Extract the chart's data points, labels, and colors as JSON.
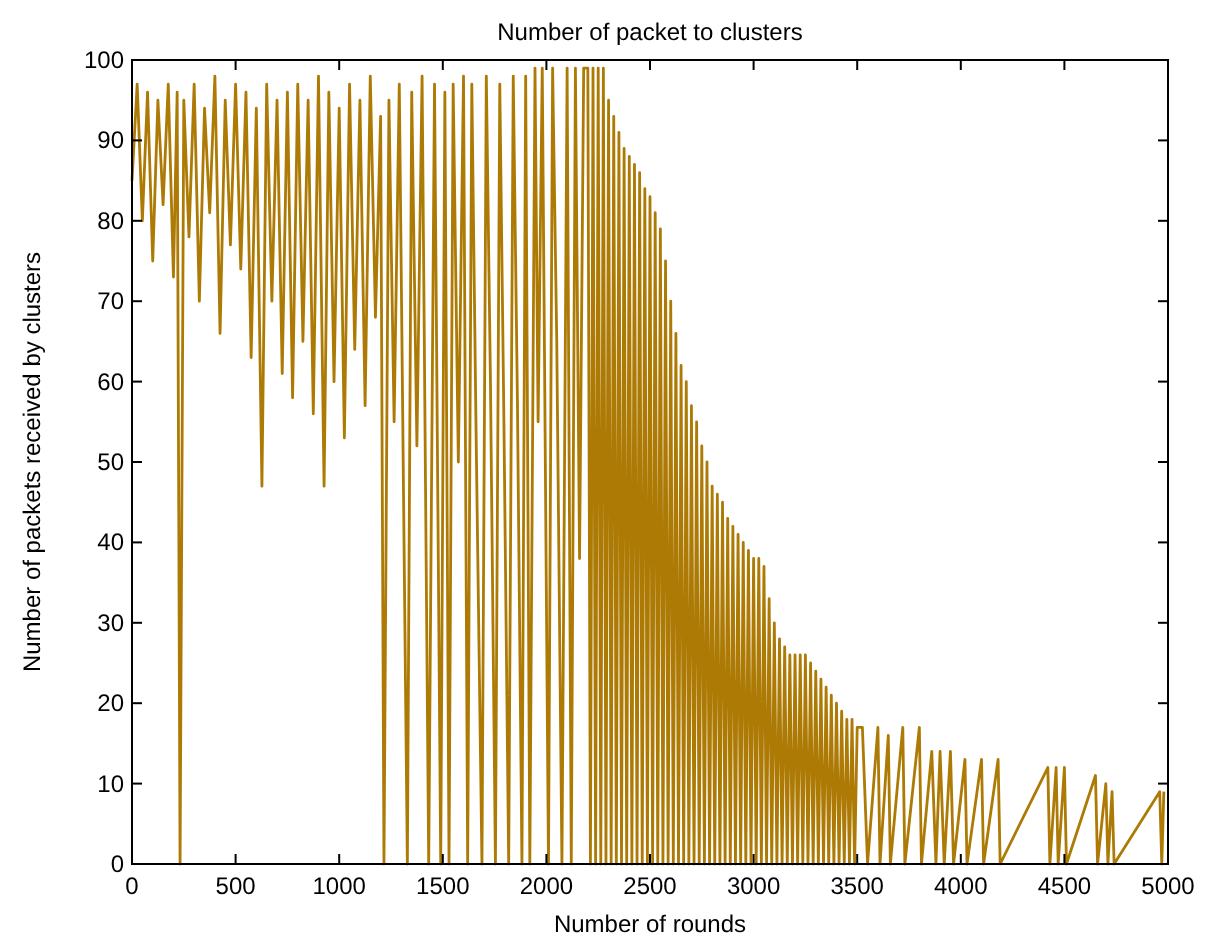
{
  "chart_data": {
    "type": "line",
    "title": "Number of packet to clusters",
    "xlabel": "Number of rounds",
    "ylabel": "Number of packets received by clusters",
    "x": [
      0,
      25,
      50,
      75,
      100,
      125,
      150,
      175,
      200,
      218,
      232,
      250,
      275,
      300,
      325,
      350,
      375,
      400,
      425,
      450,
      475,
      500,
      525,
      550,
      575,
      600,
      627,
      650,
      675,
      700,
      725,
      750,
      775,
      800,
      825,
      850,
      875,
      900,
      927,
      950,
      975,
      1000,
      1025,
      1050,
      1075,
      1100,
      1125,
      1150,
      1175,
      1200,
      1216,
      1240,
      1265,
      1290,
      1329,
      1350,
      1375,
      1400,
      1432,
      1460,
      1490,
      1510,
      1530,
      1550,
      1575,
      1600,
      1620,
      1640,
      1660,
      1689,
      1710,
      1730,
      1754,
      1775,
      1795,
      1818,
      1840,
      1860,
      1882,
      1900,
      1920,
      1945,
      1960,
      1980,
      2010,
      2030,
      2050,
      2075,
      2100,
      2120,
      2140,
      2160,
      2180,
      2200,
      2212.5,
      2225,
      2237.5,
      2250,
      2262.5,
      2275,
      2287.5,
      2300,
      2312.5,
      2325,
      2337.5,
      2350,
      2362.5,
      2375,
      2387.5,
      2400,
      2412.5,
      2425,
      2437.5,
      2450,
      2462.5,
      2475,
      2487.5,
      2500,
      2512.5,
      2525,
      2537.5,
      2550,
      2562.5,
      2575,
      2587.5,
      2600,
      2612.5,
      2625,
      2637.5,
      2650,
      2662.5,
      2675,
      2687.5,
      2700,
      2712.5,
      2725,
      2737.5,
      2750,
      2762.5,
      2775,
      2787.5,
      2800,
      2812.5,
      2825,
      2837.5,
      2850,
      2862.5,
      2875,
      2887.5,
      2900,
      2912.5,
      2925,
      2937.5,
      2950,
      2962.5,
      2975,
      2987.5,
      3000,
      3012.5,
      3025,
      3037.5,
      3050,
      3062.5,
      3075,
      3087.5,
      3100,
      3112.5,
      3125,
      3137.5,
      3150,
      3162.5,
      3175,
      3187.5,
      3200,
      3212.5,
      3225,
      3237.5,
      3250,
      3262.5,
      3275,
      3287.5,
      3300,
      3312.5,
      3325,
      3337.5,
      3350,
      3362.5,
      3375,
      3387.5,
      3400,
      3412.5,
      3425,
      3437.5,
      3450,
      3462.5,
      3475,
      3487.5,
      3500,
      3525,
      3550,
      3600,
      3610,
      3650,
      3660,
      3720,
      3730,
      3800,
      3810,
      3860,
      3880,
      3900,
      3920,
      3950,
      3965,
      4020,
      4030,
      4100,
      4110,
      4180,
      4190,
      4420,
      4430,
      4460,
      4470,
      4500,
      4510,
      4650,
      4660,
      4700,
      4710,
      4730,
      4740,
      4960,
      4970,
      4980
    ],
    "series": [
      {
        "color": "#ad7b05",
        "values": [
          85,
          97,
          80,
          96,
          75,
          95,
          82,
          97,
          73,
          96,
          0,
          95,
          78,
          97,
          70,
          94,
          81,
          98,
          66,
          95,
          77,
          97,
          74,
          96,
          63,
          94,
          47,
          97,
          70,
          95,
          61,
          96,
          58,
          97,
          65,
          95,
          56,
          98,
          47,
          96,
          60,
          94,
          53,
          97,
          64,
          95,
          57,
          98,
          68,
          93,
          0,
          95,
          55,
          97,
          0,
          96,
          52,
          98,
          0,
          97,
          0,
          96,
          0,
          97,
          50,
          98,
          0,
          97,
          55,
          0,
          98,
          60,
          0,
          97,
          55,
          0,
          98,
          58,
          0,
          98,
          0,
          99,
          55,
          99,
          0,
          99,
          65,
          0,
          99,
          0,
          99,
          38,
          99,
          99,
          0,
          99,
          0,
          99,
          0,
          99,
          0,
          95,
          0,
          93,
          0,
          91,
          0,
          89,
          0,
          88,
          0,
          87,
          0,
          86,
          0,
          84,
          0,
          83,
          0,
          81,
          0,
          79,
          0,
          75,
          0,
          70,
          0,
          66,
          0,
          62,
          0,
          60,
          0,
          57,
          0,
          55,
          0,
          52,
          0,
          50,
          0,
          47,
          0,
          46,
          0,
          45,
          0,
          43,
          0,
          42,
          0,
          41,
          0,
          40,
          0,
          39,
          0,
          38,
          0,
          38,
          0,
          37,
          0,
          33,
          0,
          30,
          0,
          28,
          0,
          27,
          0,
          26,
          0,
          26,
          0,
          26,
          0,
          26,
          0,
          25,
          0,
          24,
          0,
          23,
          0,
          22,
          0,
          21,
          0,
          20,
          0,
          19,
          0,
          18,
          0,
          18,
          0,
          17,
          17,
          0,
          17,
          0,
          16,
          0,
          17,
          0,
          17,
          0,
          14,
          0,
          14,
          0,
          14,
          0,
          13,
          0,
          13,
          0,
          13,
          0,
          12,
          0,
          12,
          0,
          12,
          0,
          11,
          0,
          10,
          0,
          9,
          0,
          9,
          0,
          9
        ]
      }
    ],
    "xlim": [
      0,
      5000
    ],
    "ylim": [
      0,
      100
    ],
    "xticks": [
      0,
      500,
      1000,
      1500,
      2000,
      2500,
      3000,
      3500,
      4000,
      4500,
      5000
    ],
    "yticks": [
      0,
      10,
      20,
      30,
      40,
      50,
      60,
      70,
      80,
      90,
      100
    ],
    "grid": false,
    "marker": "none",
    "line_style": "solid"
  }
}
